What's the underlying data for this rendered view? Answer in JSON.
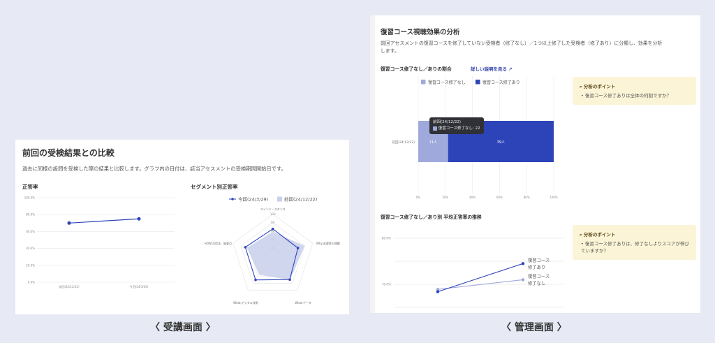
{
  "left_panel": {
    "title": "前回の受検結果との比較",
    "description": "過去に同様の設問を受検した際の結果と比較します。グラフ内の日付は、該当アセスメントの受検期間開始日です。",
    "caption": "〈 受講画面 〉"
  },
  "right_panel": {
    "title": "復習コース視聴効果の分析",
    "description_line1": "前回アセスメントの復習コースを修了していない受検者（修了なし）／1つ以上修了した受検者（修了あり）に分類し、効果を分析",
    "description_line2": "します。",
    "section1_title": "復習コース修了なし／ありの割合",
    "detail_link": "詳しい説明を見る",
    "section2_title": "復習コース修了なし／あり別 平均正答率の推移",
    "point1": {
      "title": "分析のポイント",
      "item": "復習コース修了ありは全体の何割ですか？"
    },
    "point2": {
      "title": "分析のポイント",
      "item": "復習コース修了ありは、修了なしよりスコアが伸びていますか？"
    },
    "tooltip": {
      "title": "前回(24/12/22)",
      "item": "復習コース修了なし: 22"
    },
    "caption": "〈 管理画面 〉"
  },
  "colors": {
    "primary": "#2d44b8",
    "light": "#a0a9dc",
    "shade": "#c9cfec",
    "point_bg": "#fbf4d6",
    "background": "#e7eaf4"
  },
  "chart_data": [
    {
      "type": "line",
      "title": "正答率",
      "categories": [
        "前回(24/12/22)",
        "今回(24/3/29)"
      ],
      "values": [
        70,
        75
      ],
      "yticks": [
        "0.0%",
        "20.0%",
        "40.0%",
        "60.0%",
        "80.0%",
        "100.0%"
      ],
      "ylim": [
        0,
        100
      ],
      "grid": true
    },
    {
      "type": "radar",
      "title": "セグメント別正答率",
      "axes": [
        "マインド・スタンス",
        "Why:必要性の理解",
        "What:データ",
        "What:デジタル技術",
        "HOW:活用法、留意点"
      ],
      "scale_labels": [
        "20",
        "40",
        "60",
        "80",
        "100"
      ],
      "range": [
        0,
        100
      ],
      "series": [
        {
          "name": "今回(24/3/29)",
          "values": [
            65,
            63,
            69,
            70,
            69
          ]
        },
        {
          "name": "前回(24/12/22)",
          "values": [
            58,
            80,
            70,
            55,
            65
          ]
        }
      ],
      "legend": "top"
    },
    {
      "type": "bar",
      "stacked": true,
      "orientation": "horizontal",
      "categories": [
        "前回(24/12/22)"
      ],
      "series": [
        {
          "name": "復習コース修了なし",
          "values": [
            22
          ],
          "label": "11人"
        },
        {
          "name": "復習コース修了あり",
          "values": [
            78
          ],
          "label": "39人"
        }
      ],
      "xticks": [
        "0%",
        "20%",
        "40%",
        "60%",
        "80%",
        "100%"
      ],
      "xlim": [
        0,
        100
      ],
      "legend": "top"
    },
    {
      "type": "line",
      "yticks": [
        "70.0%",
        "80.0%"
      ],
      "ylim": [
        65,
        80
      ],
      "series": [
        {
          "name": "復習コース修了あり",
          "label_lines": [
            "復習コース",
            "修了あり"
          ],
          "values": [
            68.4,
            74.5
          ]
        },
        {
          "name": "復習コース修了なし",
          "label_lines": [
            "復習コース",
            "修了なし"
          ],
          "values": [
            68.9,
            71.0
          ]
        }
      ],
      "grid": true
    }
  ]
}
